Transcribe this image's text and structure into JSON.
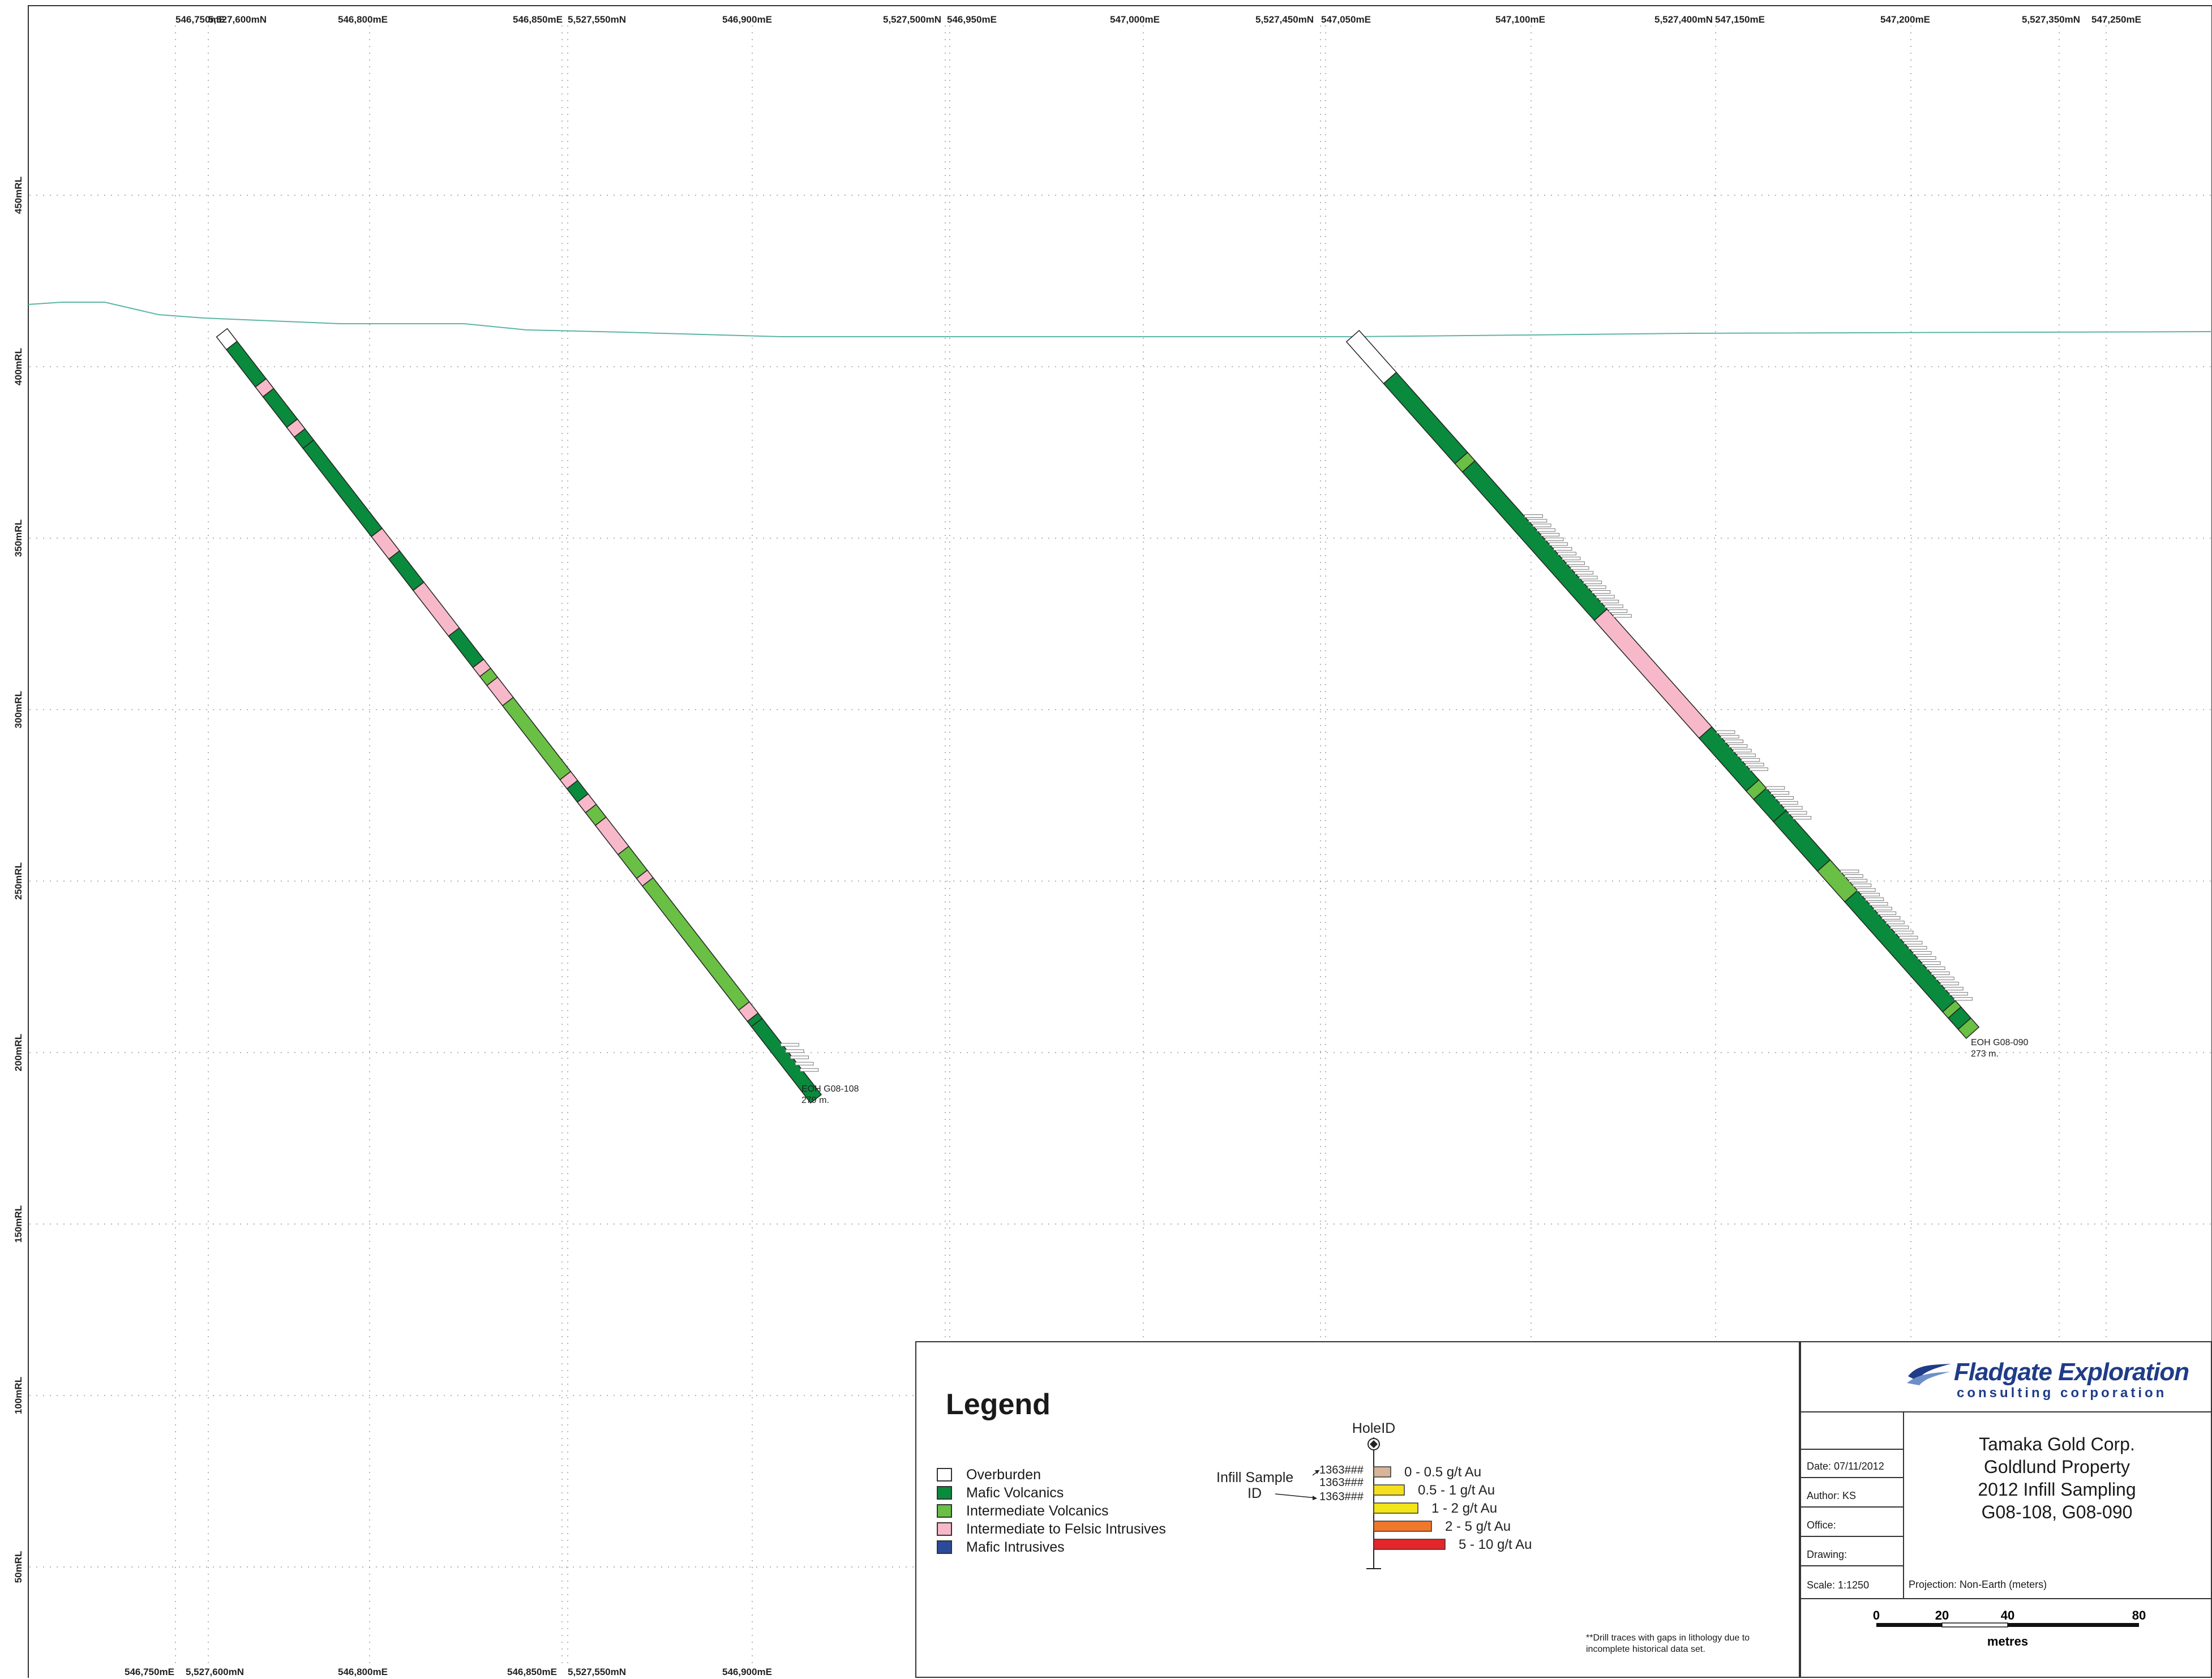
{
  "axes": {
    "top_ticks": [
      "546,750mE",
      "546,800mE",
      "546,850mE",
      "546,900mE",
      "546,950mE",
      "547,000mE",
      "547,050mE",
      "547,100mE",
      "547,150mE",
      "547,200mE",
      "547,250mE"
    ],
    "top_northings": [
      "5,527,600mN",
      "5,527,550mN",
      "5,527,500mN",
      "5,527,450mN",
      "5,527,400mN",
      "5,527,350mN"
    ],
    "bottom_ticks": [
      "546,750mE",
      "546,800mE",
      "546,850mE",
      "546,900mE"
    ],
    "bottom_northings": [
      "5,527,600mN",
      "5,527,550mN"
    ],
    "rl_labels": [
      "450mRL",
      "400mRL",
      "350mRL",
      "300mRL",
      "250mRL",
      "200mRL",
      "150mRL",
      "100mRL",
      "50mRL"
    ]
  },
  "holes": [
    {
      "hole_id": "G08-108",
      "eoh_label": "EOH G08-108",
      "eoh_depth": "279 m.",
      "segments": [
        {
          "lith": "overburden",
          "frac": 0.017
        },
        {
          "lith": "mafic",
          "frac": 0.05
        },
        {
          "lith": "felsic",
          "frac": 0.013
        },
        {
          "lith": "mafic",
          "frac": 0.041
        },
        {
          "lith": "felsic",
          "frac": 0.013
        },
        {
          "lith": "mafic",
          "frac": 0.015
        },
        {
          "lith": "mafic",
          "frac": 0.118
        },
        {
          "lith": "felsic",
          "frac": 0.03
        },
        {
          "lith": "mafic",
          "frac": 0.042
        },
        {
          "lith": "felsic",
          "frac": 0.061
        },
        {
          "lith": "mafic",
          "frac": 0.042
        },
        {
          "lith": "felsic",
          "frac": 0.012
        },
        {
          "lith": "intermediate",
          "frac": 0.012
        },
        {
          "lith": "felsic",
          "frac": 0.027
        },
        {
          "lith": "intermediate",
          "frac": 0.099
        },
        {
          "lith": "felsic",
          "frac": 0.012
        },
        {
          "lith": "mafic",
          "frac": 0.018
        },
        {
          "lith": "felsic",
          "frac": 0.014
        },
        {
          "lith": "intermediate",
          "frac": 0.017
        },
        {
          "lith": "felsic",
          "frac": 0.039
        },
        {
          "lith": "intermediate",
          "frac": 0.032
        },
        {
          "lith": "felsic",
          "frac": 0.01
        },
        {
          "lith": "intermediate",
          "frac": 0.166
        },
        {
          "lith": "felsic",
          "frac": 0.015
        },
        {
          "lith": "mafic",
          "frac": 0.007
        },
        {
          "lith": "mafic",
          "frac": 0.102
        }
      ],
      "sample_groups": [
        {
          "start": 0.958,
          "end": 1.0,
          "count": 5
        }
      ]
    },
    {
      "hole_id": "G08-090",
      "eoh_label": "EOH G08-090",
      "eoh_depth": "273 m.",
      "segments": [
        {
          "lith": "overburden",
          "frac": 0.06
        },
        {
          "lith": "mafic",
          "frac": 0.115
        },
        {
          "lith": "intermediate",
          "frac": 0.012
        },
        {
          "lith": "mafic",
          "frac": 0.213
        },
        {
          "lith": "felsic",
          "frac": 0.169
        },
        {
          "lith": "mafic",
          "frac": 0.076
        },
        {
          "lith": "intermediate",
          "frac": 0.012
        },
        {
          "lith": "mafic",
          "frac": 0.032
        },
        {
          "lith": "mafic",
          "frac": 0.071
        },
        {
          "lith": "intermediate",
          "frac": 0.044
        },
        {
          "lith": "mafic",
          "frac": 0.158
        },
        {
          "lith": "intermediate",
          "frac": 0.009
        },
        {
          "lith": "mafic",
          "frac": 0.016
        },
        {
          "lith": "intermediate",
          "frac": 0.013
        }
      ],
      "sample_groups": [
        {
          "start": 0.27,
          "end": 0.31,
          "count": 6
        },
        {
          "start": 0.31,
          "end": 0.42,
          "count": 16
        },
        {
          "start": 0.58,
          "end": 0.64,
          "count": 9
        },
        {
          "start": 0.66,
          "end": 0.71,
          "count": 7
        },
        {
          "start": 0.78,
          "end": 0.86,
          "count": 12
        },
        {
          "start": 0.86,
          "end": 0.97,
          "count": 15
        }
      ]
    }
  ],
  "legend": {
    "title": "Legend",
    "lithologies": [
      {
        "label": "Overburden",
        "color": "#ffffff"
      },
      {
        "label": "Mafic Volcanics",
        "color": "#0a8a3c"
      },
      {
        "label": "Intermediate Volcanics",
        "color": "#6abf45"
      },
      {
        "label": "Intermediate to Felsic Intrusives",
        "color": "#f7b9c9"
      },
      {
        "label": "Mafic Intrusives",
        "color": "#2a4a9b"
      }
    ],
    "hole_id_label": "HoleID",
    "infill_label_line1": "Infill Sample",
    "infill_label_line2": "ID",
    "sample_ids": [
      "1363###",
      "1363###",
      "1363###"
    ],
    "grades": [
      {
        "label": "0 - 0.5 g/t Au",
        "color": "#d8b49a",
        "length": 1
      },
      {
        "label": "0.5 - 1 g/t Au",
        "color": "#f5df1f",
        "length": 2
      },
      {
        "label": "1 - 2 g/t Au",
        "color": "#f2e51a",
        "length": 3
      },
      {
        "label": "2 - 5 g/t Au",
        "color": "#f0782c",
        "length": 4
      },
      {
        "label": "5 - 10 g/t Au",
        "color": "#e4262b",
        "length": 5
      }
    ],
    "disclaimer": "**Drill traces with gaps in lithology due to incomplete historical data set."
  },
  "title_block": {
    "logo_name": "Fladgate Exploration",
    "logo_sub": "consulting corporation",
    "title_lines": [
      "Tamaka Gold Corp.",
      "Goldlund Property",
      "2012 Infill Sampling",
      "G08-108, G08-090"
    ],
    "date": "Date: 07/11/2012",
    "author": "Author: KS",
    "office": "Office:",
    "drawing": "Drawing:",
    "scale": "Scale: 1:1250",
    "projection": "Projection: Non-Earth (meters)"
  },
  "scale_bar": {
    "ticks": [
      "0",
      "20",
      "40",
      "80"
    ],
    "unit": "metres"
  },
  "colors": {
    "overburden": "#ffffff",
    "mafic": "#0a8a3c",
    "intermediate": "#6abf45",
    "felsic": "#f7b9c9",
    "topography": "#5cb5a6",
    "grid": "#9a9a9a"
  }
}
